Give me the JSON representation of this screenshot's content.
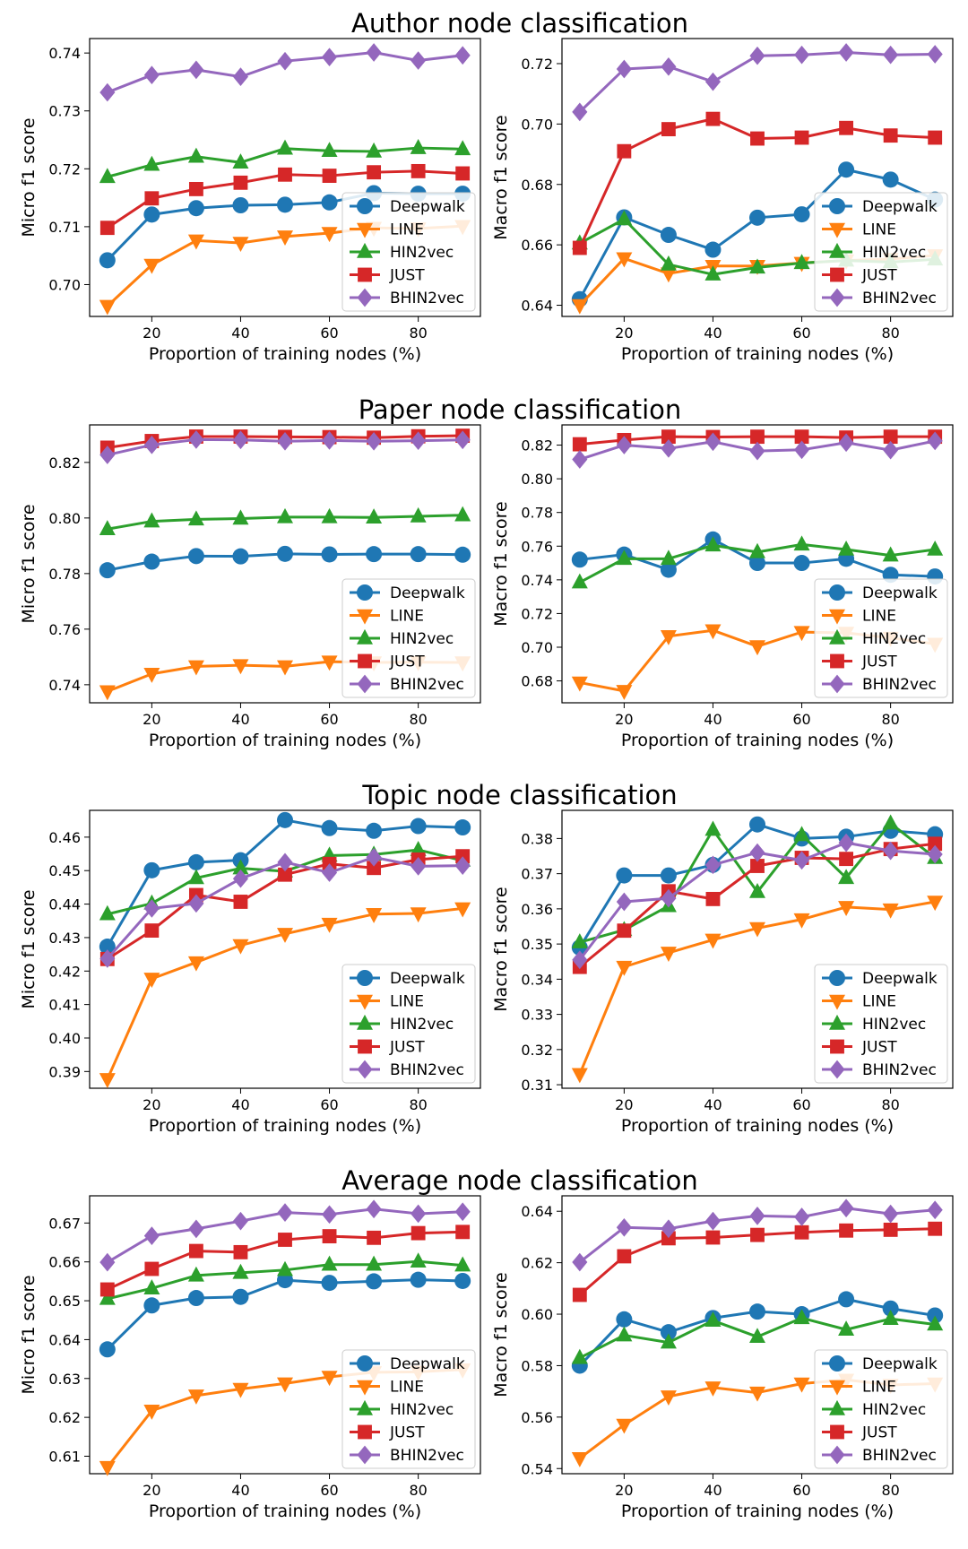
{
  "styles": {
    "Deepwalk": {
      "color": "#1f77b4",
      "marker": "circle"
    },
    "LINE": {
      "color": "#ff7f0e",
      "marker": "triangle-down"
    },
    "HIN2vec": {
      "color": "#2ca02c",
      "marker": "triangle-up"
    },
    "JUST": {
      "color": "#d62728",
      "marker": "square"
    },
    "BHIN2vec": {
      "color": "#9467bd",
      "marker": "diamond"
    }
  },
  "chart_data": [
    {
      "type": "line",
      "row": 0,
      "col": 0,
      "title": "Author node classification",
      "xlabel": "Proportion of training nodes (%)",
      "ylabel": "Micro f1 score",
      "x": [
        10,
        20,
        30,
        40,
        50,
        60,
        70,
        80,
        90
      ],
      "xlim": [
        6,
        94
      ],
      "ylim": [
        0.6945,
        0.7425
      ],
      "xticks": [
        20,
        40,
        60,
        80
      ],
      "yticks": [
        0.7,
        0.71,
        0.72,
        0.73,
        0.74
      ],
      "ytick_labels": [
        "0.70",
        "0.71",
        "0.72",
        "0.73",
        "0.74"
      ],
      "legend_loc": "lower-right",
      "series": [
        {
          "name": "Deepwalk",
          "values": [
            0.7042,
            0.7121,
            0.7132,
            0.7137,
            0.7138,
            0.7142,
            0.7158,
            0.7157,
            0.7157
          ]
        },
        {
          "name": "LINE",
          "values": [
            0.6963,
            0.7034,
            0.7076,
            0.7072,
            0.7083,
            0.7089,
            0.7098,
            0.7097,
            0.7101
          ]
        },
        {
          "name": "HIN2vec",
          "values": [
            0.7186,
            0.7207,
            0.7221,
            0.7211,
            0.7235,
            0.7231,
            0.723,
            0.7236,
            0.7234
          ]
        },
        {
          "name": "JUST",
          "values": [
            0.7098,
            0.7149,
            0.7165,
            0.7176,
            0.719,
            0.7188,
            0.7194,
            0.7196,
            0.7192
          ]
        },
        {
          "name": "BHIN2vec",
          "values": [
            0.7332,
            0.7362,
            0.7371,
            0.7359,
            0.7386,
            0.7393,
            0.7401,
            0.7387,
            0.7396
          ]
        }
      ]
    },
    {
      "type": "line",
      "row": 0,
      "col": 1,
      "title": "",
      "xlabel": "Proportion of training nodes (%)",
      "ylabel": "Macro f1 score",
      "x": [
        10,
        20,
        30,
        40,
        50,
        60,
        70,
        80,
        90
      ],
      "xlim": [
        6,
        94
      ],
      "ylim": [
        0.6363,
        0.7283
      ],
      "xticks": [
        20,
        40,
        60,
        80
      ],
      "yticks": [
        0.64,
        0.66,
        0.68,
        0.7,
        0.72
      ],
      "ytick_labels": [
        "0.64",
        "0.66",
        "0.68",
        "0.70",
        "0.72"
      ],
      "legend_loc": "lower-right",
      "series": [
        {
          "name": "Deepwalk",
          "values": [
            0.642,
            0.6691,
            0.6633,
            0.6584,
            0.669,
            0.6701,
            0.6849,
            0.6816,
            0.675
          ]
        },
        {
          "name": "LINE",
          "values": [
            0.64,
            0.6555,
            0.6505,
            0.653,
            0.653,
            0.654,
            0.6548,
            0.6553,
            0.6565
          ]
        },
        {
          "name": "HIN2vec",
          "values": [
            0.6605,
            0.6685,
            0.6535,
            0.6502,
            0.6525,
            0.654,
            0.6548,
            0.6543,
            0.6552
          ]
        },
        {
          "name": "JUST",
          "values": [
            0.659,
            0.691,
            0.6983,
            0.7017,
            0.6952,
            0.6955,
            0.6987,
            0.6962,
            0.6955
          ]
        },
        {
          "name": "BHIN2vec",
          "values": [
            0.704,
            0.7182,
            0.719,
            0.714,
            0.7226,
            0.7229,
            0.7237,
            0.7229,
            0.7231
          ]
        }
      ]
    },
    {
      "type": "line",
      "row": 1,
      "col": 0,
      "title": "Paper node classification",
      "xlabel": "Proportion of training nodes (%)",
      "ylabel": "Micro f1 score",
      "x": [
        10,
        20,
        30,
        40,
        50,
        60,
        70,
        80,
        90
      ],
      "xlim": [
        6,
        94
      ],
      "ylim": [
        0.7335,
        0.8335
      ],
      "xticks": [
        20,
        40,
        60,
        80
      ],
      "yticks": [
        0.74,
        0.76,
        0.78,
        0.8,
        0.82
      ],
      "ytick_labels": [
        "0.74",
        "0.76",
        "0.78",
        "0.80",
        "0.82"
      ],
      "legend_loc": "lower-right",
      "series": [
        {
          "name": "Deepwalk",
          "values": [
            0.7812,
            0.7843,
            0.7863,
            0.7862,
            0.7871,
            0.7869,
            0.787,
            0.787,
            0.7868
          ]
        },
        {
          "name": "LINE",
          "values": [
            0.7376,
            0.7439,
            0.7466,
            0.747,
            0.7466,
            0.7483,
            0.748,
            0.7481,
            0.748
          ]
        },
        {
          "name": "HIN2vec",
          "values": [
            0.796,
            0.7988,
            0.7995,
            0.7998,
            0.8003,
            0.8003,
            0.8002,
            0.8006,
            0.801
          ]
        },
        {
          "name": "JUST",
          "values": [
            0.8253,
            0.8277,
            0.8293,
            0.8293,
            0.8292,
            0.8291,
            0.8289,
            0.8294,
            0.8296
          ]
        },
        {
          "name": "BHIN2vec",
          "values": [
            0.8227,
            0.8263,
            0.8282,
            0.8281,
            0.8276,
            0.8279,
            0.8276,
            0.8278,
            0.8281
          ]
        }
      ]
    },
    {
      "type": "line",
      "row": 1,
      "col": 1,
      "title": "",
      "xlabel": "Proportion of training nodes (%)",
      "ylabel": "Macro f1 score",
      "x": [
        10,
        20,
        30,
        40,
        50,
        60,
        70,
        80,
        90
      ],
      "xlim": [
        6,
        94
      ],
      "ylim": [
        0.667,
        0.832
      ],
      "xticks": [
        20,
        40,
        60,
        80
      ],
      "yticks": [
        0.68,
        0.7,
        0.72,
        0.74,
        0.76,
        0.78,
        0.8,
        0.82
      ],
      "ytick_labels": [
        "0.68",
        "0.70",
        "0.72",
        "0.74",
        "0.76",
        "0.78",
        "0.80",
        "0.82"
      ],
      "legend_loc": "lower-right",
      "series": [
        {
          "name": "Deepwalk",
          "values": [
            0.752,
            0.755,
            0.746,
            0.764,
            0.75,
            0.75,
            0.7525,
            0.743,
            0.742
          ]
        },
        {
          "name": "LINE",
          "values": [
            0.679,
            0.674,
            0.7065,
            0.71,
            0.7005,
            0.709,
            0.7085,
            0.7055,
            0.702
          ]
        },
        {
          "name": "HIN2vec",
          "values": [
            0.7385,
            0.7525,
            0.7525,
            0.7605,
            0.7565,
            0.761,
            0.758,
            0.7545,
            0.758
          ]
        },
        {
          "name": "JUST",
          "values": [
            0.8205,
            0.823,
            0.825,
            0.8248,
            0.825,
            0.825,
            0.8245,
            0.825,
            0.825
          ]
        },
        {
          "name": "BHIN2vec",
          "values": [
            0.8115,
            0.82,
            0.818,
            0.822,
            0.8165,
            0.8172,
            0.8215,
            0.817,
            0.8225
          ]
        }
      ]
    },
    {
      "type": "line",
      "row": 2,
      "col": 0,
      "title": "Topic node classification",
      "xlabel": "Proportion of training nodes (%)",
      "ylabel": "Micro f1 score",
      "x": [
        10,
        20,
        30,
        40,
        50,
        60,
        70,
        80,
        90
      ],
      "xlim": [
        6,
        94
      ],
      "ylim": [
        0.385,
        0.468
      ],
      "xticks": [
        20,
        40,
        60,
        80
      ],
      "yticks": [
        0.39,
        0.4,
        0.41,
        0.42,
        0.43,
        0.44,
        0.45,
        0.46
      ],
      "ytick_labels": [
        "0.39",
        "0.40",
        "0.41",
        "0.42",
        "0.43",
        "0.44",
        "0.45",
        "0.46"
      ],
      "legend_loc": "lower-right",
      "series": [
        {
          "name": "Deepwalk",
          "values": [
            0.4273,
            0.4501,
            0.4525,
            0.4531,
            0.4651,
            0.4627,
            0.4619,
            0.4633,
            0.4629
          ]
        },
        {
          "name": "LINE",
          "values": [
            0.3877,
            0.4177,
            0.4226,
            0.4277,
            0.4311,
            0.4341,
            0.437,
            0.4372,
            0.4387
          ]
        },
        {
          "name": "HIN2vec",
          "values": [
            0.437,
            0.4402,
            0.4478,
            0.4507,
            0.4498,
            0.4545,
            0.4548,
            0.4562,
            0.453
          ]
        },
        {
          "name": "JUST",
          "values": [
            0.4236,
            0.4321,
            0.4427,
            0.4407,
            0.4488,
            0.452,
            0.4508,
            0.4533,
            0.4543
          ]
        },
        {
          "name": "BHIN2vec",
          "values": [
            0.4237,
            0.4387,
            0.4402,
            0.4476,
            0.4525,
            0.4494,
            0.454,
            0.4513,
            0.4515
          ]
        }
      ]
    },
    {
      "type": "line",
      "row": 2,
      "col": 1,
      "title": "",
      "xlabel": "Proportion of training nodes (%)",
      "ylabel": "Macro f1 score",
      "x": [
        10,
        20,
        30,
        40,
        50,
        60,
        70,
        80,
        90
      ],
      "xlim": [
        6,
        94
      ],
      "ylim": [
        0.309,
        0.388
      ],
      "xticks": [
        20,
        40,
        60,
        80
      ],
      "yticks": [
        0.31,
        0.32,
        0.33,
        0.34,
        0.35,
        0.36,
        0.37,
        0.38
      ],
      "ytick_labels": [
        "0.31",
        "0.32",
        "0.33",
        "0.34",
        "0.35",
        "0.36",
        "0.37",
        "0.38"
      ],
      "legend_loc": "lower-right",
      "series": [
        {
          "name": "Deepwalk",
          "values": [
            0.349,
            0.3695,
            0.3695,
            0.3725,
            0.384,
            0.38,
            0.3805,
            0.3822,
            0.3812
          ]
        },
        {
          "name": "LINE",
          "values": [
            0.313,
            0.3435,
            0.3475,
            0.3512,
            0.3545,
            0.357,
            0.3605,
            0.3598,
            0.362
          ]
        },
        {
          "name": "HIN2vec",
          "values": [
            0.3505,
            0.354,
            0.3608,
            0.3825,
            0.3648,
            0.381,
            0.3688,
            0.3843,
            0.3745
          ]
        },
        {
          "name": "JUST",
          "values": [
            0.3435,
            0.3538,
            0.365,
            0.3628,
            0.3722,
            0.3745,
            0.3742,
            0.377,
            0.3785
          ]
        },
        {
          "name": "BHIN2vec",
          "values": [
            0.3455,
            0.362,
            0.363,
            0.3725,
            0.376,
            0.3738,
            0.3788,
            0.3765,
            0.3755
          ]
        }
      ]
    },
    {
      "type": "line",
      "row": 3,
      "col": 0,
      "title": "Average node classification",
      "xlabel": "Proportion of training nodes (%)",
      "ylabel": "Micro f1 score",
      "x": [
        10,
        20,
        30,
        40,
        50,
        60,
        70,
        80,
        90
      ],
      "xlim": [
        6,
        94
      ],
      "ylim": [
        0.6055,
        0.677
      ],
      "xticks": [
        20,
        40,
        60,
        80
      ],
      "yticks": [
        0.61,
        0.62,
        0.63,
        0.64,
        0.65,
        0.66,
        0.67
      ],
      "ytick_labels": [
        "0.61",
        "0.62",
        "0.63",
        "0.64",
        "0.65",
        "0.66",
        "0.67"
      ],
      "legend_loc": "lower-right",
      "series": [
        {
          "name": "Deepwalk",
          "values": [
            0.6375,
            0.6488,
            0.6507,
            0.651,
            0.6553,
            0.6546,
            0.655,
            0.6554,
            0.6551
          ]
        },
        {
          "name": "LINE",
          "values": [
            0.6072,
            0.6217,
            0.6256,
            0.6273,
            0.6287,
            0.6304,
            0.6316,
            0.6317,
            0.6323
          ]
        },
        {
          "name": "HIN2vec",
          "values": [
            0.6505,
            0.6532,
            0.6565,
            0.6572,
            0.6579,
            0.6593,
            0.6593,
            0.6601,
            0.6591
          ]
        },
        {
          "name": "JUST",
          "values": [
            0.6529,
            0.6582,
            0.6628,
            0.6625,
            0.6657,
            0.6666,
            0.6662,
            0.6674,
            0.6677
          ]
        },
        {
          "name": "BHIN2vec",
          "values": [
            0.6599,
            0.6667,
            0.6685,
            0.6705,
            0.6727,
            0.6722,
            0.6736,
            0.6724,
            0.6729
          ]
        }
      ]
    },
    {
      "type": "line",
      "row": 3,
      "col": 1,
      "title": "",
      "xlabel": "Proportion of training nodes (%)",
      "ylabel": "Macro f1 score",
      "x": [
        10,
        20,
        30,
        40,
        50,
        60,
        70,
        80,
        90
      ],
      "xlim": [
        6,
        94
      ],
      "ylim": [
        0.538,
        0.646
      ],
      "xticks": [
        20,
        40,
        60,
        80
      ],
      "yticks": [
        0.54,
        0.56,
        0.58,
        0.6,
        0.62,
        0.64
      ],
      "ytick_labels": [
        "0.54",
        "0.56",
        "0.58",
        "0.60",
        "0.62",
        "0.64"
      ],
      "legend_loc": "lower-right",
      "series": [
        {
          "name": "Deepwalk",
          "values": [
            0.58,
            0.598,
            0.593,
            0.5985,
            0.601,
            0.6,
            0.6058,
            0.6022,
            0.5995
          ]
        },
        {
          "name": "LINE",
          "values": [
            0.544,
            0.557,
            0.568,
            0.5715,
            0.5695,
            0.573,
            0.5745,
            0.5725,
            0.573
          ]
        },
        {
          "name": "HIN2vec",
          "values": [
            0.583,
            0.5918,
            0.589,
            0.5975,
            0.5912,
            0.5985,
            0.594,
            0.5982,
            0.596
          ]
        },
        {
          "name": "JUST",
          "values": [
            0.6075,
            0.6225,
            0.6295,
            0.6298,
            0.6308,
            0.6318,
            0.6325,
            0.6328,
            0.6332
          ]
        },
        {
          "name": "BHIN2vec",
          "values": [
            0.6202,
            0.6337,
            0.6332,
            0.6362,
            0.6382,
            0.6378,
            0.6412,
            0.639,
            0.6405
          ]
        }
      ]
    }
  ]
}
